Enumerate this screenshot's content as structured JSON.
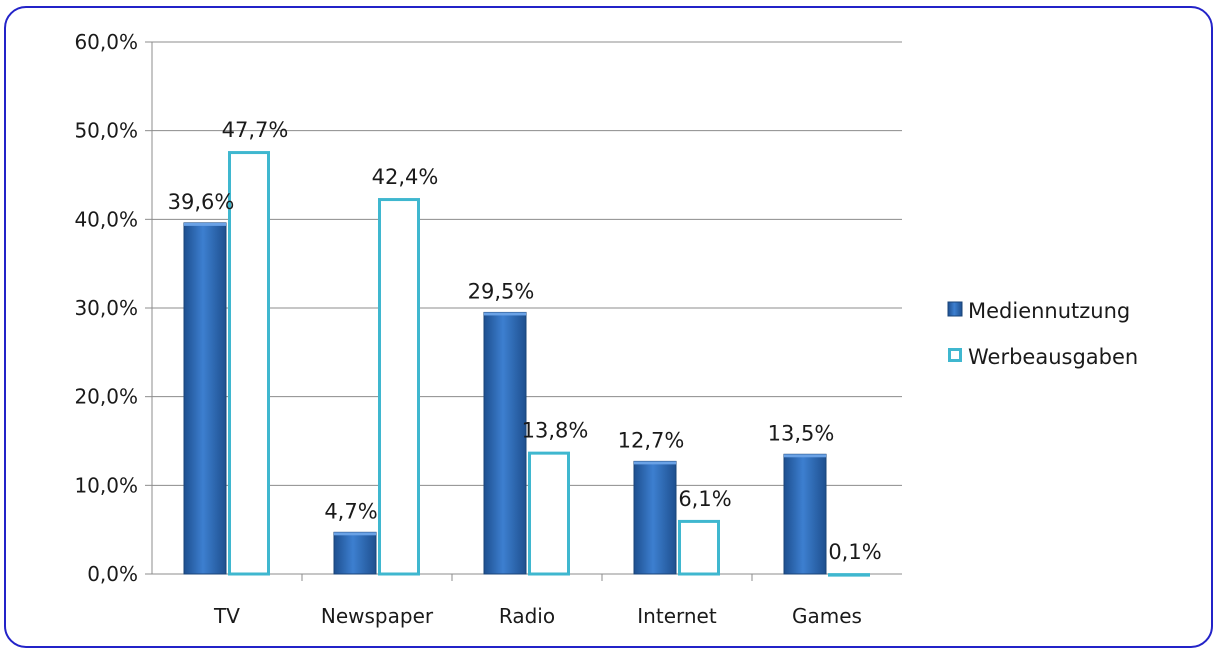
{
  "chart_data": {
    "type": "bar",
    "categories": [
      "TV",
      "Newspaper",
      "Radio",
      "Internet",
      "Games"
    ],
    "series": [
      {
        "name": "Mediennutzung",
        "values": [
          39.6,
          4.7,
          29.5,
          12.7,
          13.5
        ],
        "labels": [
          "39,6%",
          "4,7%",
          "29,5%",
          "12,7%",
          "13,5%"
        ],
        "color": "#2f6fb8"
      },
      {
        "name": "Werbeausgaben",
        "values": [
          47.7,
          42.4,
          13.8,
          6.1,
          0.1
        ],
        "labels": [
          "47,7%",
          "42,4%",
          "13,8%",
          "6,1%",
          "0,1%"
        ],
        "color": "#ffffff",
        "border_color": "#3fb7cf"
      }
    ],
    "y_ticks": [
      0,
      10,
      20,
      30,
      40,
      50,
      60
    ],
    "y_tick_labels": [
      "0,0%",
      "10,0%",
      "20,0%",
      "30,0%",
      "40,0%",
      "50,0%",
      "60,0%"
    ],
    "ylim": [
      0,
      60
    ],
    "grid": true,
    "legend_position": "right"
  }
}
